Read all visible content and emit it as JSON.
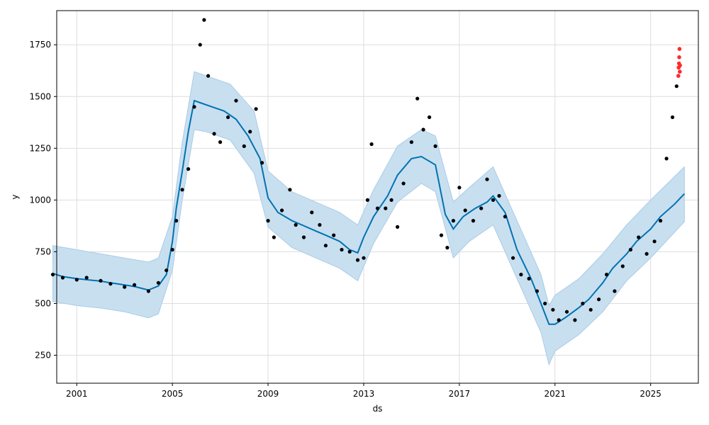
{
  "chart_data": {
    "type": "line",
    "title": "",
    "xlabel": "ds",
    "ylabel": "y",
    "xlim": [
      "2000-03-01",
      "2026-12-31"
    ],
    "ylim": [
      115,
      1915
    ],
    "x_ticks": [
      "2001",
      "2005",
      "2009",
      "2013",
      "2017",
      "2021",
      "2025"
    ],
    "y_ticks": [
      250,
      500,
      750,
      1000,
      1250,
      1500,
      1750
    ],
    "grid": true,
    "legend": "none",
    "colors": {
      "forecast_line": "#0072B2",
      "uncertainty_band": "#c8dff0",
      "uncertainty_edge": "#a9cce6",
      "observed": "#000000",
      "highlighted": "#ff2a2a"
    },
    "series": [
      {
        "role": "forecast",
        "points": [
          [
            "2000-01-01",
            645
          ],
          [
            "2000-06-01",
            630
          ],
          [
            "2001-01-01",
            620
          ],
          [
            "2001-06-01",
            615
          ],
          [
            "2002-01-01",
            608
          ],
          [
            "2002-06-01",
            600
          ],
          [
            "2003-01-01",
            590
          ],
          [
            "2003-06-01",
            582
          ],
          [
            "2004-01-01",
            565
          ],
          [
            "2004-06-01",
            585
          ],
          [
            "2004-10-01",
            640
          ],
          [
            "2005-01-01",
            800
          ],
          [
            "2005-03-01",
            960
          ],
          [
            "2005-06-01",
            1140
          ],
          [
            "2005-09-01",
            1330
          ],
          [
            "2005-12-01",
            1480
          ],
          [
            "2006-03-01",
            1470
          ],
          [
            "2006-09-01",
            1450
          ],
          [
            "2007-03-01",
            1430
          ],
          [
            "2007-09-01",
            1390
          ],
          [
            "2008-03-01",
            1310
          ],
          [
            "2008-09-01",
            1200
          ],
          [
            "2009-01-01",
            1010
          ],
          [
            "2009-06-01",
            940
          ],
          [
            "2010-01-01",
            900
          ],
          [
            "2010-06-01",
            880
          ],
          [
            "2011-01-01",
            850
          ],
          [
            "2011-06-01",
            830
          ],
          [
            "2012-01-01",
            800
          ],
          [
            "2012-06-01",
            760
          ],
          [
            "2012-10-01",
            745
          ],
          [
            "2013-01-01",
            820
          ],
          [
            "2013-06-01",
            920
          ],
          [
            "2014-01-01",
            1020
          ],
          [
            "2014-06-01",
            1120
          ],
          [
            "2015-01-01",
            1200
          ],
          [
            "2015-06-01",
            1210
          ],
          [
            "2016-01-01",
            1170
          ],
          [
            "2016-06-01",
            930
          ],
          [
            "2016-10-01",
            860
          ],
          [
            "2017-03-01",
            920
          ],
          [
            "2017-09-01",
            960
          ],
          [
            "2018-03-01",
            990
          ],
          [
            "2018-06-01",
            1020
          ],
          [
            "2018-12-01",
            940
          ],
          [
            "2019-06-01",
            760
          ],
          [
            "2020-01-01",
            620
          ],
          [
            "2020-06-01",
            500
          ],
          [
            "2020-10-01",
            400
          ],
          [
            "2021-01-01",
            400
          ],
          [
            "2021-06-01",
            430
          ],
          [
            "2022-01-01",
            480
          ],
          [
            "2022-06-01",
            520
          ],
          [
            "2023-01-01",
            600
          ],
          [
            "2023-06-01",
            670
          ],
          [
            "2024-01-01",
            740
          ],
          [
            "2024-06-01",
            800
          ],
          [
            "2025-01-01",
            860
          ],
          [
            "2025-06-01",
            920
          ],
          [
            "2026-01-01",
            980
          ],
          [
            "2026-06-01",
            1030
          ]
        ]
      },
      {
        "role": "observed",
        "points": [
          [
            "2000-01-01",
            640
          ],
          [
            "2000-06-01",
            625
          ],
          [
            "2001-01-01",
            615
          ],
          [
            "2001-06-01",
            625
          ],
          [
            "2002-01-01",
            610
          ],
          [
            "2002-06-01",
            595
          ],
          [
            "2003-01-01",
            580
          ],
          [
            "2003-06-01",
            590
          ],
          [
            "2004-01-01",
            560
          ],
          [
            "2004-06-01",
            600
          ],
          [
            "2004-10-01",
            660
          ],
          [
            "2005-01-01",
            760
          ],
          [
            "2005-03-01",
            900
          ],
          [
            "2005-06-01",
            1050
          ],
          [
            "2005-09-01",
            1150
          ],
          [
            "2005-12-01",
            1450
          ],
          [
            "2006-03-01",
            1750
          ],
          [
            "2006-05-01",
            1870
          ],
          [
            "2006-07-01",
            1600
          ],
          [
            "2006-10-01",
            1320
          ],
          [
            "2007-01-01",
            1280
          ],
          [
            "2007-05-01",
            1400
          ],
          [
            "2007-09-01",
            1480
          ],
          [
            "2008-01-01",
            1260
          ],
          [
            "2008-04-01",
            1330
          ],
          [
            "2008-07-01",
            1440
          ],
          [
            "2008-10-01",
            1180
          ],
          [
            "2009-01-01",
            900
          ],
          [
            "2009-04-01",
            820
          ],
          [
            "2009-08-01",
            950
          ],
          [
            "2009-12-01",
            1050
          ],
          [
            "2010-03-01",
            880
          ],
          [
            "2010-07-01",
            820
          ],
          [
            "2010-11-01",
            940
          ],
          [
            "2011-03-01",
            880
          ],
          [
            "2011-06-01",
            780
          ],
          [
            "2011-10-01",
            830
          ],
          [
            "2012-02-01",
            760
          ],
          [
            "2012-06-01",
            750
          ],
          [
            "2012-10-01",
            710
          ],
          [
            "2013-01-01",
            720
          ],
          [
            "2013-03-01",
            1000
          ],
          [
            "2013-05-01",
            1270
          ],
          [
            "2013-08-01",
            960
          ],
          [
            "2013-12-01",
            960
          ],
          [
            "2014-03-01",
            1000
          ],
          [
            "2014-06-01",
            870
          ],
          [
            "2014-09-01",
            1080
          ],
          [
            "2015-01-01",
            1280
          ],
          [
            "2015-04-01",
            1490
          ],
          [
            "2015-07-01",
            1340
          ],
          [
            "2015-10-01",
            1400
          ],
          [
            "2016-01-01",
            1260
          ],
          [
            "2016-04-01",
            830
          ],
          [
            "2016-07-01",
            770
          ],
          [
            "2016-10-01",
            900
          ],
          [
            "2017-01-01",
            1060
          ],
          [
            "2017-04-01",
            950
          ],
          [
            "2017-08-01",
            900
          ],
          [
            "2017-12-01",
            960
          ],
          [
            "2018-03-01",
            1100
          ],
          [
            "2018-06-01",
            1000
          ],
          [
            "2018-09-01",
            1020
          ],
          [
            "2018-12-01",
            920
          ],
          [
            "2019-04-01",
            720
          ],
          [
            "2019-08-01",
            640
          ],
          [
            "2019-12-01",
            620
          ],
          [
            "2020-04-01",
            560
          ],
          [
            "2020-08-01",
            500
          ],
          [
            "2020-12-01",
            470
          ],
          [
            "2021-03-01",
            420
          ],
          [
            "2021-07-01",
            460
          ],
          [
            "2021-11-01",
            420
          ],
          [
            "2022-03-01",
            500
          ],
          [
            "2022-07-01",
            470
          ],
          [
            "2022-11-01",
            520
          ],
          [
            "2023-03-01",
            640
          ],
          [
            "2023-07-01",
            560
          ],
          [
            "2023-11-01",
            680
          ],
          [
            "2024-03-01",
            760
          ],
          [
            "2024-07-01",
            820
          ],
          [
            "2024-11-01",
            740
          ],
          [
            "2025-03-01",
            800
          ],
          [
            "2025-06-01",
            900
          ],
          [
            "2025-09-01",
            1200
          ],
          [
            "2025-12-01",
            1400
          ],
          [
            "2026-02-01",
            1550
          ]
        ]
      },
      {
        "role": "highlighted",
        "points": [
          [
            "2026-03-01",
            1600
          ],
          [
            "2026-03-05",
            1640
          ],
          [
            "2026-03-10",
            1660
          ],
          [
            "2026-03-14",
            1690
          ],
          [
            "2026-03-18",
            1730
          ],
          [
            "2026-03-22",
            1620
          ],
          [
            "2026-03-26",
            1650
          ]
        ]
      }
    ],
    "uncertainty_band": {
      "lower": [
        [
          "2000-01-01",
          510
        ],
        [
          "2001-01-01",
          490
        ],
        [
          "2002-01-01",
          478
        ],
        [
          "2003-01-01",
          460
        ],
        [
          "2004-01-01",
          430
        ],
        [
          "2004-06-01",
          450
        ],
        [
          "2005-01-01",
          660
        ],
        [
          "2005-06-01",
          1000
        ],
        [
          "2005-12-01",
          1340
        ],
        [
          "2006-06-01",
          1330
        ],
        [
          "2007-06-01",
          1290
        ],
        [
          "2008-06-01",
          1130
        ],
        [
          "2009-01-01",
          870
        ],
        [
          "2010-01-01",
          770
        ],
        [
          "2011-01-01",
          720
        ],
        [
          "2012-01-01",
          670
        ],
        [
          "2012-10-01",
          610
        ],
        [
          "2013-06-01",
          790
        ],
        [
          "2014-06-01",
          990
        ],
        [
          "2015-06-01",
          1080
        ],
        [
          "2016-01-01",
          1040
        ],
        [
          "2016-10-01",
          720
        ],
        [
          "2017-06-01",
          800
        ],
        [
          "2018-06-01",
          880
        ],
        [
          "2019-06-01",
          620
        ],
        [
          "2020-06-01",
          360
        ],
        [
          "2020-10-01",
          205
        ],
        [
          "2021-01-01",
          270
        ],
        [
          "2022-01-01",
          350
        ],
        [
          "2023-01-01",
          460
        ],
        [
          "2024-01-01",
          610
        ],
        [
          "2025-01-01",
          720
        ],
        [
          "2026-06-01",
          895
        ]
      ],
      "upper": [
        [
          "2000-01-01",
          780
        ],
        [
          "2001-01-01",
          760
        ],
        [
          "2002-01-01",
          740
        ],
        [
          "2003-01-01",
          720
        ],
        [
          "2004-01-01",
          700
        ],
        [
          "2004-06-01",
          720
        ],
        [
          "2005-01-01",
          920
        ],
        [
          "2005-06-01",
          1280
        ],
        [
          "2005-12-01",
          1620
        ],
        [
          "2006-06-01",
          1600
        ],
        [
          "2007-06-01",
          1560
        ],
        [
          "2008-06-01",
          1430
        ],
        [
          "2009-01-01",
          1140
        ],
        [
          "2010-01-01",
          1040
        ],
        [
          "2011-01-01",
          990
        ],
        [
          "2012-01-01",
          940
        ],
        [
          "2012-10-01",
          880
        ],
        [
          "2013-06-01",
          1050
        ],
        [
          "2014-06-01",
          1260
        ],
        [
          "2015-06-01",
          1340
        ],
        [
          "2016-01-01",
          1310
        ],
        [
          "2016-10-01",
          990
        ],
        [
          "2017-06-01",
          1060
        ],
        [
          "2018-06-01",
          1160
        ],
        [
          "2019-06-01",
          900
        ],
        [
          "2020-06-01",
          640
        ],
        [
          "2020-10-01",
          490
        ],
        [
          "2021-01-01",
          540
        ],
        [
          "2022-01-01",
          620
        ],
        [
          "2023-01-01",
          740
        ],
        [
          "2024-01-01",
          880
        ],
        [
          "2025-01-01",
          1000
        ],
        [
          "2026-06-01",
          1160
        ]
      ]
    }
  }
}
